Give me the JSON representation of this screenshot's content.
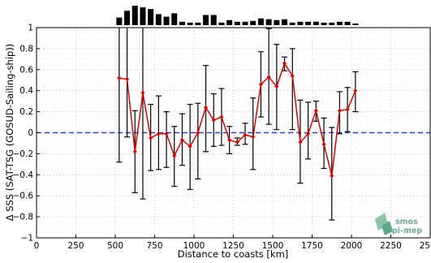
{
  "chart_data": {
    "type": "line",
    "xlabel": "Distance to coasts [km]",
    "ylabel": "Δ SSS (SAT-TSG (GOSUD-Sailing-ship))",
    "xlim": [
      0,
      2500
    ],
    "ylim": [
      -1,
      1
    ],
    "x_ticks": [
      0,
      250,
      500,
      750,
      1000,
      1250,
      1500,
      1750,
      2000,
      2250,
      2500
    ],
    "y_ticks": [
      -1,
      -0.8,
      -0.6,
      -0.4,
      -0.2,
      0,
      0.2,
      0.4,
      0.6,
      0.8,
      1
    ],
    "x_tick_labels": [
      "0",
      "250",
      "500",
      "750",
      "1000",
      "1250",
      "1500",
      "1750",
      "2000",
      "2250",
      "2500"
    ],
    "y_tick_labels": [
      "−1",
      "−0.8",
      "−0.6",
      "−0.4",
      "−0.2",
      "0",
      "0.2",
      "0.4",
      "0.6",
      "0.8",
      "1"
    ],
    "grid": true,
    "reference_line": {
      "y": 0,
      "color": "#2b3bd6",
      "style": "dashed"
    },
    "series": [
      {
        "color": "#e00000",
        "marker": "diamond",
        "x": [
          525,
          575,
          625,
          675,
          725,
          775,
          825,
          875,
          925,
          975,
          1025,
          1075,
          1125,
          1175,
          1225,
          1275,
          1325,
          1375,
          1425,
          1475,
          1525,
          1575,
          1625,
          1675,
          1725,
          1775,
          1825,
          1875,
          1925,
          1975,
          2025
        ],
        "values": [
          0.52,
          0.51,
          -0.18,
          0.38,
          -0.05,
          -0.01,
          -0.01,
          -0.22,
          -0.07,
          -0.13,
          0.0,
          0.24,
          0.12,
          0.15,
          -0.07,
          -0.09,
          -0.02,
          -0.04,
          0.46,
          0.53,
          0.44,
          0.66,
          0.54,
          -0.09,
          -0.01,
          0.21,
          -0.11,
          -0.41,
          0.21,
          0.22,
          0.4
        ],
        "error_low": [
          -0.28,
          -0.04,
          -0.57,
          -0.63,
          -0.36,
          -0.35,
          -0.33,
          -0.51,
          -0.31,
          -0.54,
          -0.44,
          -0.18,
          -0.13,
          -0.12,
          -0.2,
          -0.12,
          -0.11,
          -0.35,
          0.15,
          0.08,
          0.03,
          0.59,
          0.03,
          -0.48,
          -0.25,
          0.11,
          -0.34,
          -0.83,
          -0.01,
          0.01,
          0.2
        ],
        "error_high": [
          1.0,
          1.0,
          0.21,
          1.0,
          0.27,
          0.35,
          0.2,
          0.06,
          0.18,
          0.27,
          0.28,
          0.64,
          0.37,
          0.42,
          0.06,
          -0.05,
          0.09,
          0.33,
          0.77,
          0.99,
          0.84,
          0.72,
          0.8,
          0.31,
          0.29,
          0.3,
          0.14,
          0.05,
          0.39,
          0.43,
          0.58
        ]
      }
    ],
    "histogram": {
      "x": [
        525,
        575,
        625,
        675,
        725,
        775,
        825,
        875,
        925,
        975,
        1025,
        1075,
        1125,
        1175,
        1225,
        1275,
        1325,
        1375,
        1425,
        1475,
        1525,
        1575,
        1625,
        1675,
        1725,
        1775,
        1825,
        1875,
        1925,
        1975,
        2025
      ],
      "counts": [
        9,
        17,
        23,
        21,
        19,
        13,
        10,
        14,
        4,
        3,
        3,
        12,
        12,
        3,
        6,
        4,
        4,
        5,
        8,
        7,
        6,
        7,
        3,
        4,
        4,
        4,
        3,
        3,
        4,
        4,
        2
      ]
    }
  },
  "logo": {
    "line1": "smos",
    "line2": "pi-mep"
  }
}
